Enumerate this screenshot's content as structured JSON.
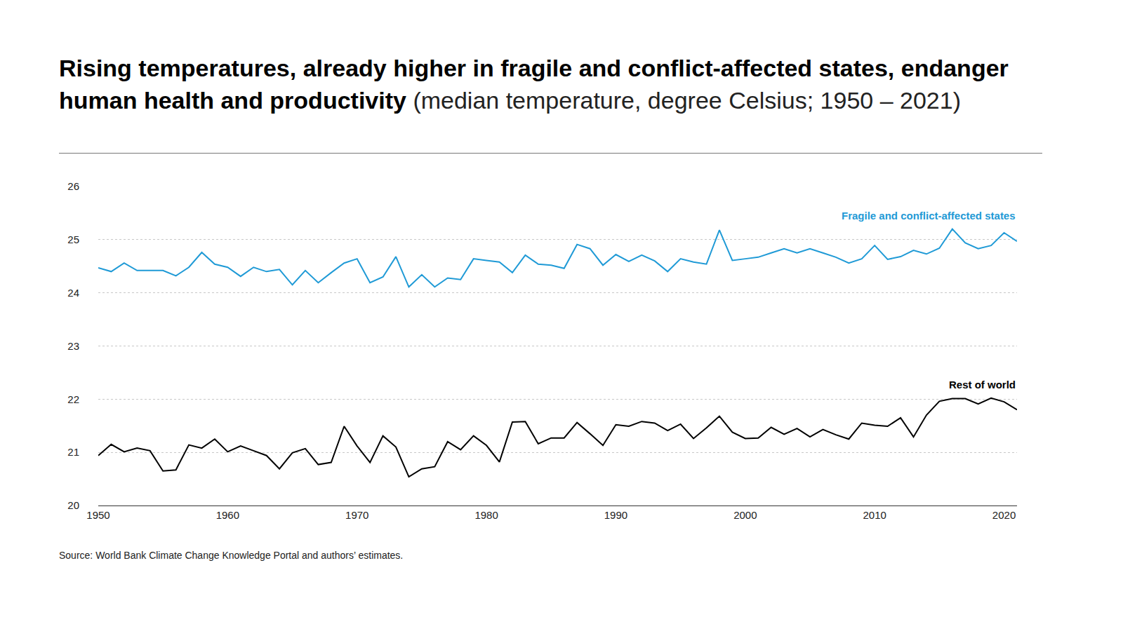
{
  "chart_data": {
    "type": "line",
    "title": "Rising temperatures, already higher in fragile and conflict-affected states, endanger human health and productivity",
    "subtitle": "(median temperature, degree Celsius; 1950 – 2021)",
    "note": "Source: World Bank Climate Change Knowledge Portal and authors’ estimates.",
    "x": [
      1950,
      1951,
      1952,
      1953,
      1954,
      1955,
      1956,
      1957,
      1958,
      1959,
      1960,
      1961,
      1962,
      1963,
      1964,
      1965,
      1966,
      1967,
      1968,
      1969,
      1970,
      1971,
      1972,
      1973,
      1974,
      1975,
      1976,
      1977,
      1978,
      1979,
      1980,
      1981,
      1982,
      1983,
      1984,
      1985,
      1986,
      1987,
      1988,
      1989,
      1990,
      1991,
      1992,
      1993,
      1994,
      1995,
      1996,
      1997,
      1998,
      1999,
      2000,
      2001,
      2002,
      2003,
      2004,
      2005,
      2006,
      2007,
      2008,
      2009,
      2010,
      2011,
      2012,
      2013,
      2014,
      2015,
      2016,
      2017,
      2018,
      2019,
      2020,
      2021
    ],
    "series": [
      {
        "name": "Fragile and conflict-affected states",
        "color": "#1f9ad6",
        "values": [
          24.47,
          24.4,
          24.56,
          24.42,
          24.42,
          24.42,
          24.32,
          24.48,
          24.76,
          24.54,
          24.48,
          24.31,
          24.48,
          24.4,
          24.44,
          24.15,
          24.42,
          24.19,
          24.38,
          24.56,
          24.64,
          24.19,
          24.3,
          24.68,
          24.11,
          24.34,
          24.11,
          24.28,
          24.25,
          24.64,
          24.61,
          24.58,
          24.38,
          24.71,
          24.54,
          24.52,
          24.46,
          24.91,
          24.83,
          24.52,
          24.72,
          24.59,
          24.71,
          24.6,
          24.4,
          24.64,
          24.58,
          24.54,
          25.18,
          24.61,
          24.64,
          24.67,
          24.75,
          24.83,
          24.75,
          24.83,
          24.75,
          24.67,
          24.56,
          24.64,
          24.89,
          24.63,
          24.68,
          24.8,
          24.73,
          24.84,
          25.2,
          24.94,
          24.83,
          24.89,
          25.13,
          24.97
        ]
      },
      {
        "name": "Rest of world",
        "color": "#000000",
        "values": [
          20.94,
          21.15,
          21.01,
          21.08,
          21.03,
          20.65,
          20.67,
          21.14,
          21.08,
          21.25,
          21.01,
          21.12,
          21.03,
          20.94,
          20.69,
          20.99,
          21.07,
          20.77,
          20.81,
          21.49,
          21.12,
          20.81,
          21.31,
          21.1,
          20.54,
          20.69,
          20.73,
          21.2,
          21.05,
          21.31,
          21.13,
          20.82,
          21.57,
          21.58,
          21.16,
          21.27,
          21.27,
          21.56,
          21.35,
          21.13,
          21.52,
          21.49,
          21.58,
          21.55,
          21.41,
          21.53,
          21.26,
          21.46,
          21.68,
          21.38,
          21.26,
          21.27,
          21.47,
          21.34,
          21.45,
          21.29,
          21.43,
          21.33,
          21.25,
          21.55,
          21.51,
          21.49,
          21.65,
          21.29,
          21.7,
          21.96,
          22.01,
          22.01,
          21.91,
          22.02,
          21.95,
          21.8
        ]
      }
    ],
    "xlim": [
      1950,
      2021
    ],
    "xticks": [
      1950,
      1960,
      1970,
      1980,
      1990,
      2000,
      2010,
      2020
    ],
    "ylim": [
      20,
      26
    ],
    "yticks": [
      20,
      21,
      22,
      23,
      24,
      25,
      26
    ],
    "grid": true
  }
}
